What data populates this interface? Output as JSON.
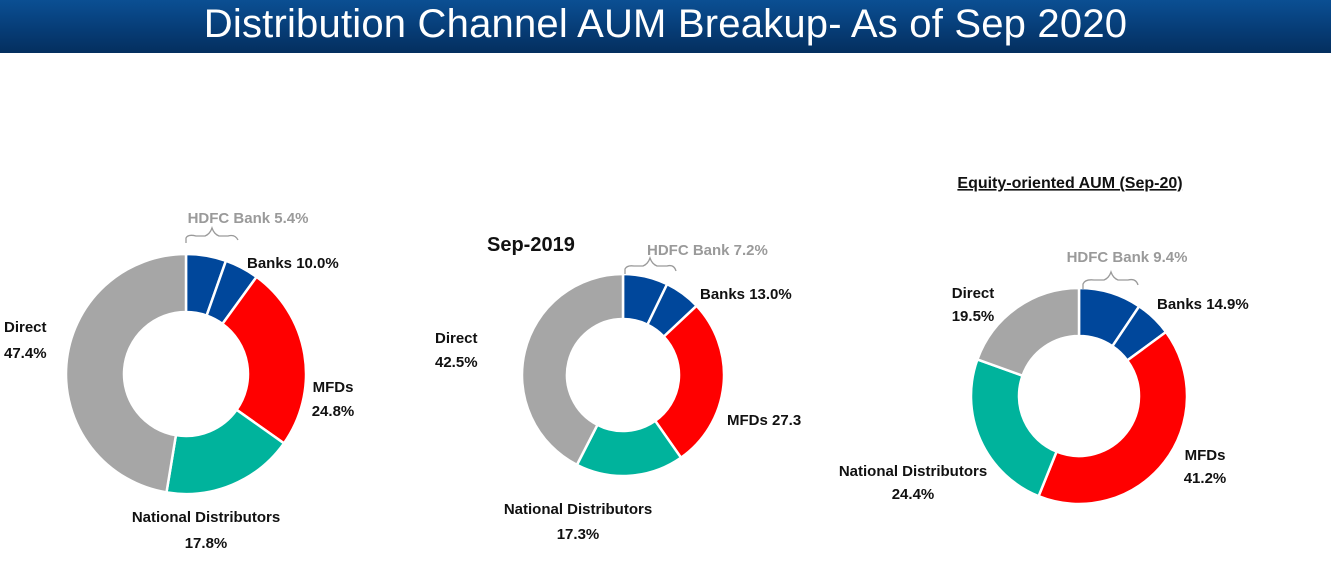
{
  "header": {
    "title": "Distribution Channel AUM Breakup- As of Sep 2020"
  },
  "colors": {
    "hdfc_bank": "#00479b",
    "banks": "#00479b",
    "mfds": "#ff0000",
    "national_distributors": "#00b39c",
    "direct": "#a6a6a6"
  },
  "chart_data": [
    {
      "type": "pie",
      "style": "donut",
      "title": "",
      "slices": [
        {
          "name": "HDFC Bank",
          "value": 5.4,
          "label": "HDFC Bank 5.4%",
          "color": "#00479b"
        },
        {
          "name": "Banks",
          "value": 4.6,
          "label": "Banks 10.0%",
          "color": "#00479b"
        },
        {
          "name": "MFDs",
          "value": 24.8,
          "label_line1": "MFDs",
          "label_line2": "24.8%",
          "color": "#ff0000"
        },
        {
          "name": "National Distributors",
          "value": 17.8,
          "label_line1": "National Distributors",
          "label_line2": "17.8%",
          "color": "#00b39c"
        },
        {
          "name": "Direct",
          "value": 47.4,
          "label_line1": "Direct",
          "label_line2": "47.4%",
          "color": "#a6a6a6"
        }
      ]
    },
    {
      "type": "pie",
      "style": "donut",
      "title": "Sep-2019",
      "slices": [
        {
          "name": "HDFC Bank",
          "value": 7.2,
          "label": "HDFC Bank 7.2%",
          "color": "#00479b"
        },
        {
          "name": "Banks",
          "value": 5.8,
          "label": "Banks 13.0%",
          "color": "#00479b"
        },
        {
          "name": "MFDs",
          "value": 27.3,
          "label": "MFDs 27.3",
          "color": "#ff0000"
        },
        {
          "name": "National Distributors",
          "value": 17.3,
          "label_line1": "National Distributors",
          "label_line2": "17.3%",
          "color": "#00b39c"
        },
        {
          "name": "Direct",
          "value": 42.5,
          "label_line1": "Direct",
          "label_line2": "42.5%",
          "color": "#a6a6a6"
        }
      ]
    },
    {
      "type": "pie",
      "style": "donut",
      "title": "Equity-oriented AUM  (Sep-20)",
      "slices": [
        {
          "name": "HDFC Bank",
          "value": 9.4,
          "label": "HDFC Bank 9.4%",
          "color": "#00479b"
        },
        {
          "name": "Banks",
          "value": 5.5,
          "label": "Banks 14.9%",
          "color": "#00479b"
        },
        {
          "name": "MFDs",
          "value": 41.2,
          "label_line1": "MFDs",
          "label_line2": "41.2%",
          "color": "#ff0000"
        },
        {
          "name": "National Distributors",
          "value": 24.4,
          "label_line1": "National Distributors",
          "label_line2": "24.4%",
          "color": "#00b39c"
        },
        {
          "name": "Direct",
          "value": 19.5,
          "label_line1": "Direct",
          "label_line2": "19.5%",
          "color": "#a6a6a6"
        }
      ]
    }
  ]
}
